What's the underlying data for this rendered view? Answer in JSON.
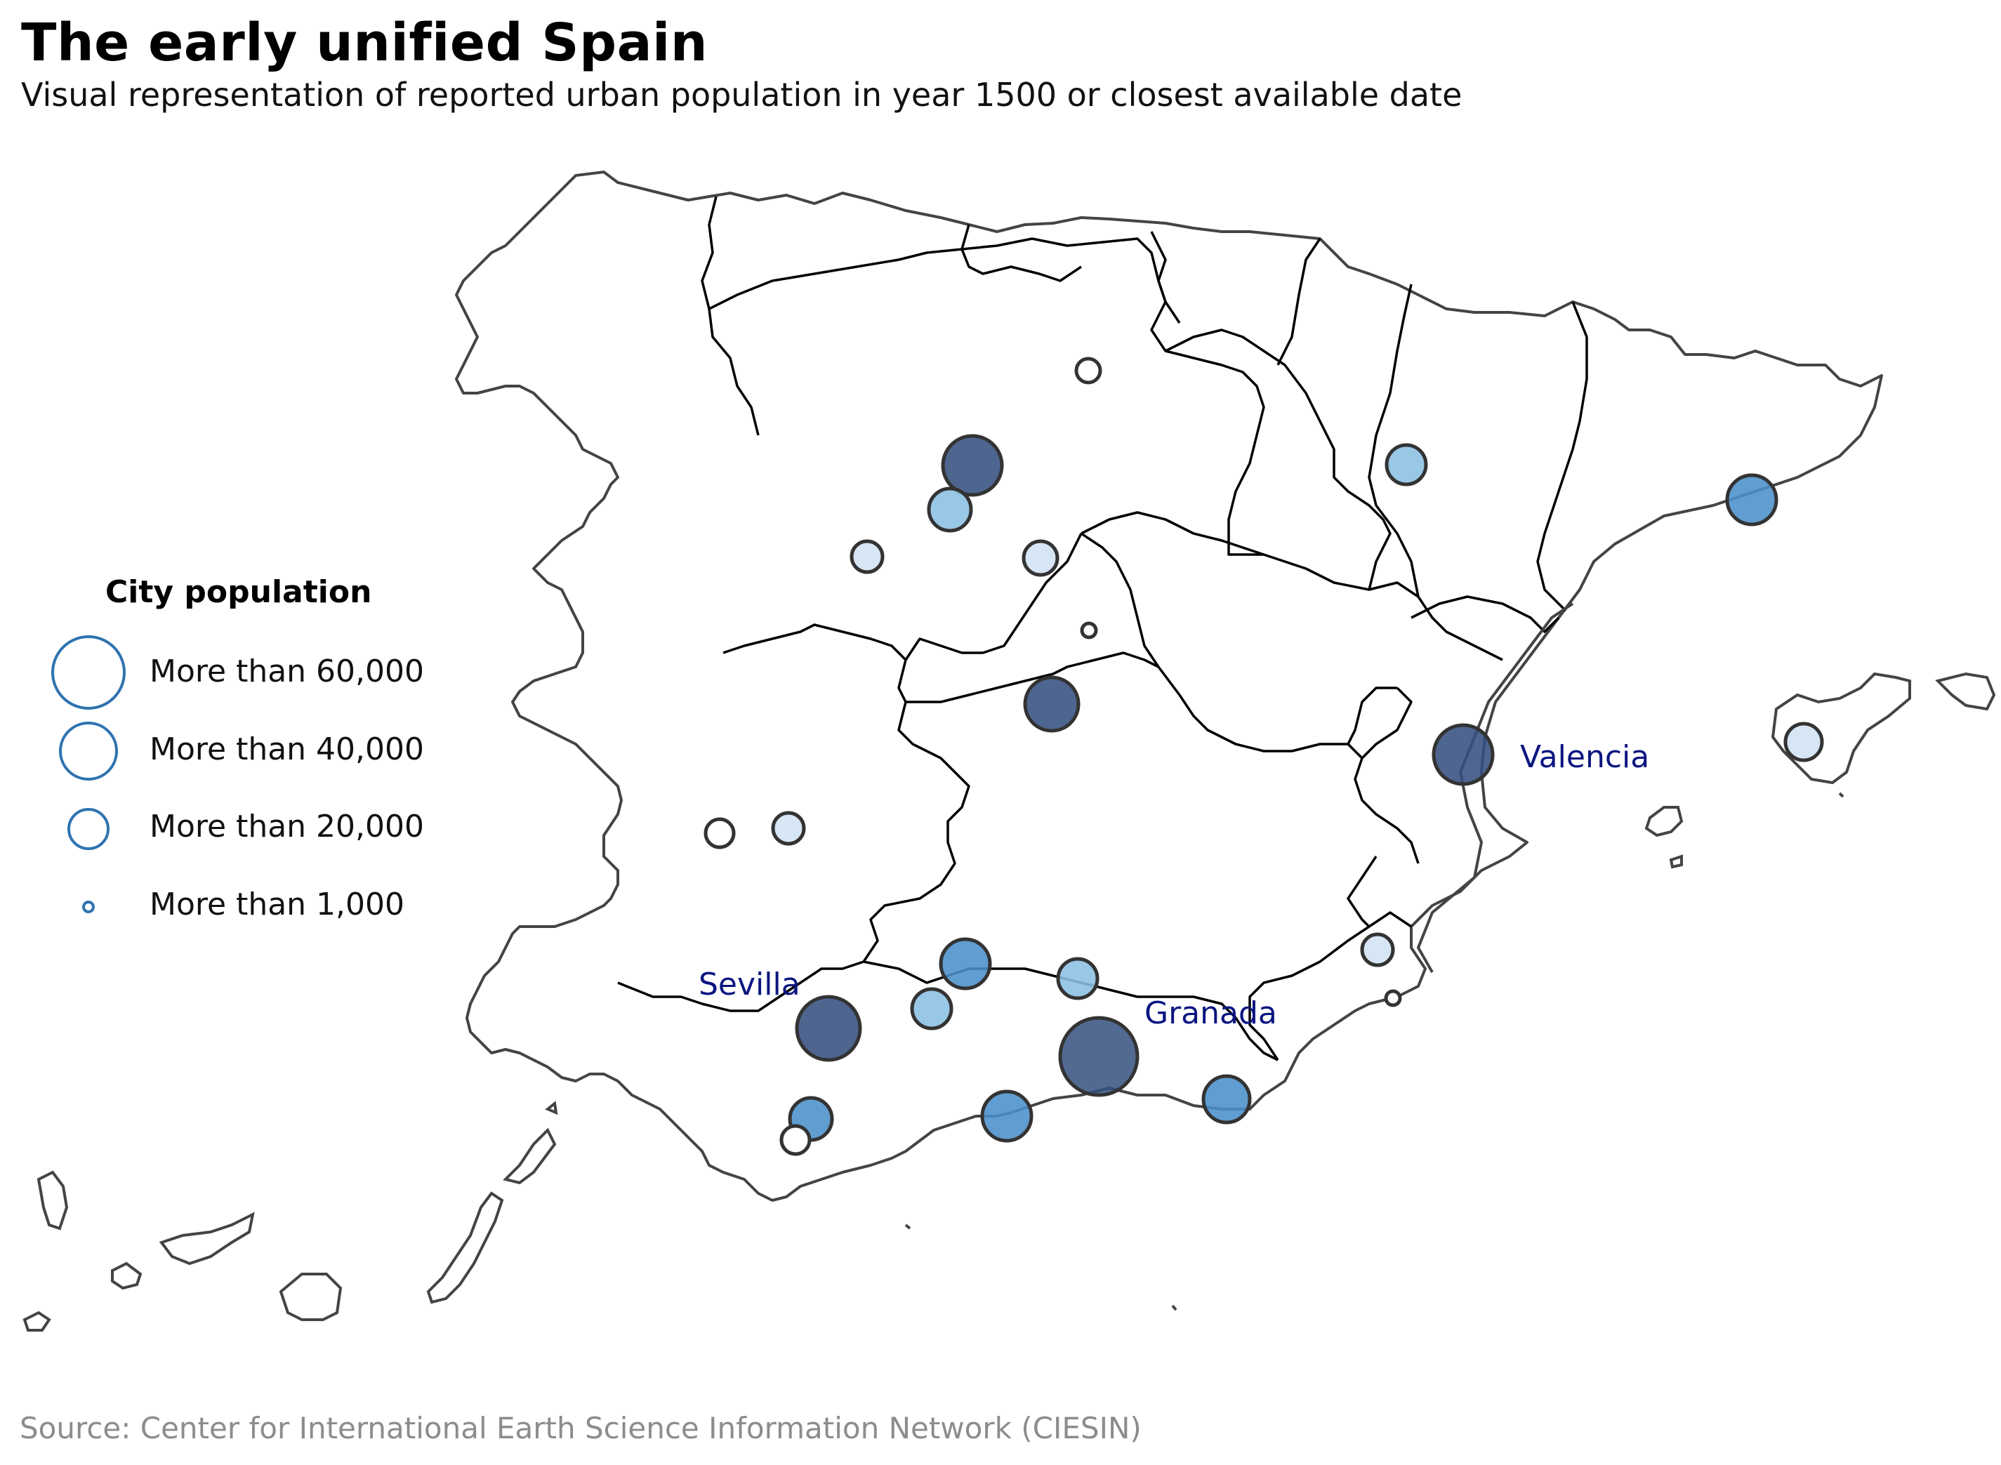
{
  "title": "The early unified Spain",
  "subtitle": "Visual representation of reported urban population in year 1500 or closest available date",
  "source": "Source: Center for International Earth Science Information Network (CIESIN)",
  "legend": {
    "title": "City population",
    "items": [
      {
        "label": "More than 60,000"
      },
      {
        "label": "More than 40,000"
      },
      {
        "label": "More than 20,000"
      },
      {
        "label": "More than 1,000"
      }
    ]
  },
  "labeled_cities": [
    {
      "name": "Valencia"
    },
    {
      "name": "Sevilla"
    },
    {
      "name": "Granada"
    }
  ],
  "colors": {
    "tier_70k": "#34507f",
    "tier_40k": "#4a8fca",
    "tier_20k": "#8bbfe2",
    "tier_small": "#d7e6f5",
    "outline": "#444444",
    "border": "#000000",
    "legend_ring": "#2f73b0",
    "label": "#0b1580"
  },
  "map_data": {
    "type": "proportional-symbol-map",
    "cities": [
      {
        "pop_tier": "60k+",
        "fill": "#34507f"
      },
      {
        "pop_tier": "40k+",
        "fill": "#4a8fca"
      },
      {
        "pop_tier": "20k+",
        "fill": "#8bbfe2"
      },
      {
        "pop_tier": "1k+",
        "fill": "#d7e6f5"
      }
    ]
  }
}
